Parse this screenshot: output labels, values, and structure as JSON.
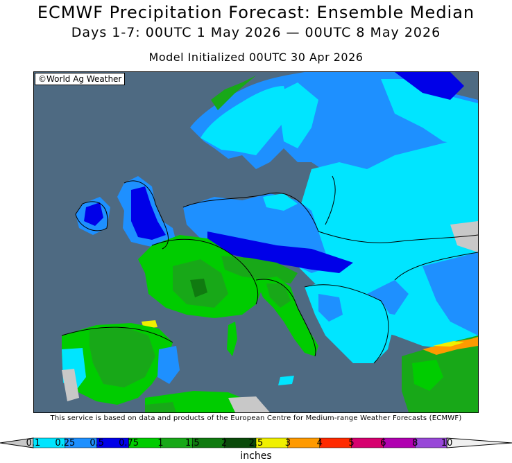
{
  "header": {
    "title": "ECMWF Precipitation Forecast: Ensemble Median",
    "period": "Days 1-7: 00UTC 1 May 2026 — 00UTC 8 May 2026",
    "initialized": "Model Initialized 00UTC 30 Apr 2026"
  },
  "map": {
    "credit": "©World Ag Weather",
    "region": "Europe"
  },
  "footer": {
    "disclaimer": "This service is based on data and products of the European Centre for Medium-range Weather Forecasts (ECMWF)",
    "units": "inches"
  },
  "legend": {
    "ticks": [
      "0.1",
      "0.25",
      "0.5",
      "0.75",
      "1",
      "1.5",
      "2",
      "2.5",
      "3",
      "4",
      "5",
      "6",
      "8",
      "10"
    ],
    "colors": [
      "#c8c8c8",
      "#00e5ff",
      "#1e90ff",
      "#0000e8",
      "#00cc00",
      "#18a818",
      "#107a10",
      "#0a4a0a",
      "#f0f000",
      "#ff9a00",
      "#ff2a00",
      "#d6006e",
      "#b000b0",
      "#9848d8",
      "#f0f0f0"
    ]
  },
  "colors": {
    "ocean": "#4e6a82",
    "dry": "#c8c8c8",
    "light": "#00e5ff",
    "moderate": "#1e90ff",
    "heavy": "#0000e8",
    "green": "#00cc00"
  }
}
